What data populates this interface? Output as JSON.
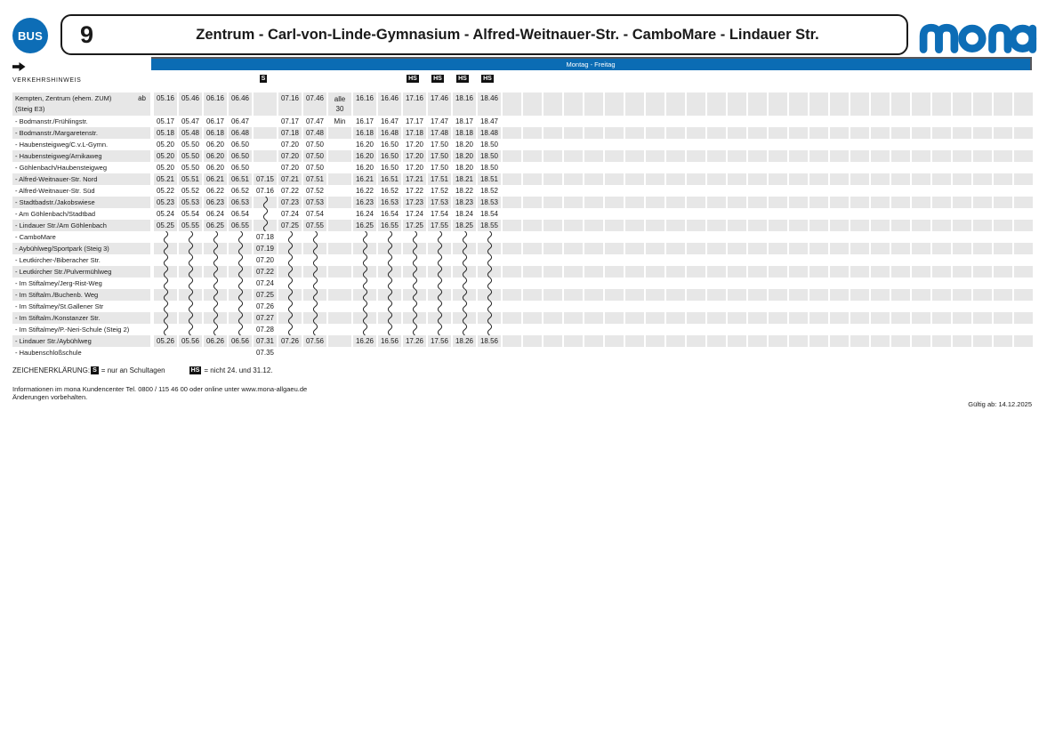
{
  "header": {
    "bus_badge": "BUS",
    "route_number": "9",
    "route_title": "Zentrum - Carl-von-Linde-Gymnasium - Alfred-Weitnauer-Str. - CamboMare - Lindauer Str.",
    "brand": "mona",
    "day_band": "Montag - Freitag",
    "traffic_note_label": "VERKEHRSHINWEIS"
  },
  "colors": {
    "brand_blue": "#0b6cb4",
    "stripe_gray": "#e7e7e7",
    "badge_black": "#111111"
  },
  "column_badges": [
    {
      "col": 5,
      "label": "S"
    },
    {
      "col": 11,
      "label": "HS"
    },
    {
      "col": 12,
      "label": "HS"
    },
    {
      "col": 13,
      "label": "HS"
    },
    {
      "col": 14,
      "label": "HS"
    }
  ],
  "table": {
    "num_time_cols": 14,
    "num_empty_cols": 26,
    "skip_symbol": "~",
    "rows": [
      {
        "name": "Kempten, Zentrum (ehem. ZUM)",
        "name2": "(Steig E3)",
        "dep_label": "ab",
        "cells": [
          "05.16",
          "05.46",
          "06.16",
          "06.46",
          "",
          "07.16",
          "07.46",
          "alle|30",
          "16.16",
          "16.46",
          "17.16",
          "17.46",
          "18.16",
          "18.46"
        ]
      },
      {
        "name": "- Bodmanstr./Frühlingstr.",
        "cells": [
          "05.17",
          "05.47",
          "06.17",
          "06.47",
          "",
          "07.17",
          "07.47",
          "Min",
          "16.17",
          "16.47",
          "17.17",
          "17.47",
          "18.17",
          "18.47"
        ]
      },
      {
        "name": "- Bodmanstr./Margaretenstr.",
        "cells": [
          "05.18",
          "05.48",
          "06.18",
          "06.48",
          "",
          "07.18",
          "07.48",
          "",
          "16.18",
          "16.48",
          "17.18",
          "17.48",
          "18.18",
          "18.48"
        ]
      },
      {
        "name": "- Haubensteigweg/C.v.L-Gymn.",
        "cells": [
          "05.20",
          "05.50",
          "06.20",
          "06.50",
          "",
          "07.20",
          "07.50",
          "",
          "16.20",
          "16.50",
          "17.20",
          "17.50",
          "18.20",
          "18.50"
        ]
      },
      {
        "name": "- Haubensteigweg/Arnikaweg",
        "cells": [
          "05.20",
          "05.50",
          "06.20",
          "06.50",
          "",
          "07.20",
          "07.50",
          "",
          "16.20",
          "16.50",
          "17.20",
          "17.50",
          "18.20",
          "18.50"
        ]
      },
      {
        "name": "- Göhlenbach/Haubensteigweg",
        "cells": [
          "05.20",
          "05.50",
          "06.20",
          "06.50",
          "",
          "07.20",
          "07.50",
          "",
          "16.20",
          "16.50",
          "17.20",
          "17.50",
          "18.20",
          "18.50"
        ]
      },
      {
        "name": "- Alfred-Weitnauer-Str. Nord",
        "cells": [
          "05.21",
          "05.51",
          "06.21",
          "06.51",
          "07.15",
          "07.21",
          "07.51",
          "",
          "16.21",
          "16.51",
          "17.21",
          "17.51",
          "18.21",
          "18.51"
        ]
      },
      {
        "name": "- Alfred-Weitnauer-Str. Süd",
        "cells": [
          "05.22",
          "05.52",
          "06.22",
          "06.52",
          "07.16",
          "07.22",
          "07.52",
          "",
          "16.22",
          "16.52",
          "17.22",
          "17.52",
          "18.22",
          "18.52"
        ]
      },
      {
        "name": "- Stadtbadstr./Jakobswiese",
        "cells": [
          "05.23",
          "05.53",
          "06.23",
          "06.53",
          "~",
          "07.23",
          "07.53",
          "",
          "16.23",
          "16.53",
          "17.23",
          "17.53",
          "18.23",
          "18.53"
        ]
      },
      {
        "name": "- Am Göhlenbach/Stadtbad",
        "cells": [
          "05.24",
          "05.54",
          "06.24",
          "06.54",
          "~",
          "07.24",
          "07.54",
          "",
          "16.24",
          "16.54",
          "17.24",
          "17.54",
          "18.24",
          "18.54"
        ]
      },
      {
        "name": "- Lindauer Str./Am Göhlenbach",
        "cells": [
          "05.25",
          "05.55",
          "06.25",
          "06.55",
          "~",
          "07.25",
          "07.55",
          "",
          "16.25",
          "16.55",
          "17.25",
          "17.55",
          "18.25",
          "18.55"
        ]
      },
      {
        "name": "- CamboMare",
        "cells": [
          "~",
          "~",
          "~",
          "~",
          "07.18",
          "~",
          "~",
          "",
          "~",
          "~",
          "~",
          "~",
          "~",
          "~"
        ]
      },
      {
        "name": "- Aybühlweg/Sportpark (Steig 3)",
        "cells": [
          "~",
          "~",
          "~",
          "~",
          "07.19",
          "~",
          "~",
          "",
          "~",
          "~",
          "~",
          "~",
          "~",
          "~"
        ]
      },
      {
        "name": "- Leutkircher-/Biberacher Str.",
        "cells": [
          "~",
          "~",
          "~",
          "~",
          "07.20",
          "~",
          "~",
          "",
          "~",
          "~",
          "~",
          "~",
          "~",
          "~"
        ]
      },
      {
        "name": "- Leutkircher Str./Pulvermühlweg",
        "cells": [
          "~",
          "~",
          "~",
          "~",
          "07.22",
          "~",
          "~",
          "",
          "~",
          "~",
          "~",
          "~",
          "~",
          "~"
        ]
      },
      {
        "name": "- Im Stiftalmey/Jerg-Rist-Weg",
        "cells": [
          "~",
          "~",
          "~",
          "~",
          "07.24",
          "~",
          "~",
          "",
          "~",
          "~",
          "~",
          "~",
          "~",
          "~"
        ]
      },
      {
        "name": "- Im Stiftalm./Buchenb. Weg",
        "cells": [
          "~",
          "~",
          "~",
          "~",
          "07.25",
          "~",
          "~",
          "",
          "~",
          "~",
          "~",
          "~",
          "~",
          "~"
        ]
      },
      {
        "name": "- Im Stiftalmey/St.Gallener Str",
        "cells": [
          "~",
          "~",
          "~",
          "~",
          "07.26",
          "~",
          "~",
          "",
          "~",
          "~",
          "~",
          "~",
          "~",
          "~"
        ]
      },
      {
        "name": "- Im Stiftalm./Konstanzer Str.",
        "cells": [
          "~",
          "~",
          "~",
          "~",
          "07.27",
          "~",
          "~",
          "",
          "~",
          "~",
          "~",
          "~",
          "~",
          "~"
        ]
      },
      {
        "name": "- Im Stiftalmey/P.-Neri-Schule (Steig 2)",
        "cells": [
          "~",
          "~",
          "~",
          "~",
          "07.28",
          "~",
          "~",
          "",
          "~",
          "~",
          "~",
          "~",
          "~",
          "~"
        ]
      },
      {
        "name": "- Lindauer Str./Aybühlweg",
        "cells": [
          "05.26",
          "05.56",
          "06.26",
          "06.56",
          "07.31",
          "07.26",
          "07.56",
          "",
          "16.26",
          "16.56",
          "17.26",
          "17.56",
          "18.26",
          "18.56"
        ]
      },
      {
        "name": "- Haubenschloßschule",
        "cells": [
          "",
          "",
          "",
          "",
          "07.35",
          "",
          "",
          "",
          "",
          "",
          "",
          "",
          "",
          ""
        ]
      }
    ]
  },
  "legend": {
    "title": "ZEICHENERKLÄRUNG:",
    "s_badge": "S",
    "s_text": "= nur an Schultagen",
    "hs_badge": "HS",
    "hs_text": "= nicht 24. und 31.12."
  },
  "footer": {
    "line1": "Informationen im mona Kundencenter Tel. 0800 / 115 46 00 oder online unter www.mona-allgaeu.de",
    "line2": "Änderungen vorbehalten.",
    "valid_from": "Gültig ab: 14.12.2025"
  }
}
